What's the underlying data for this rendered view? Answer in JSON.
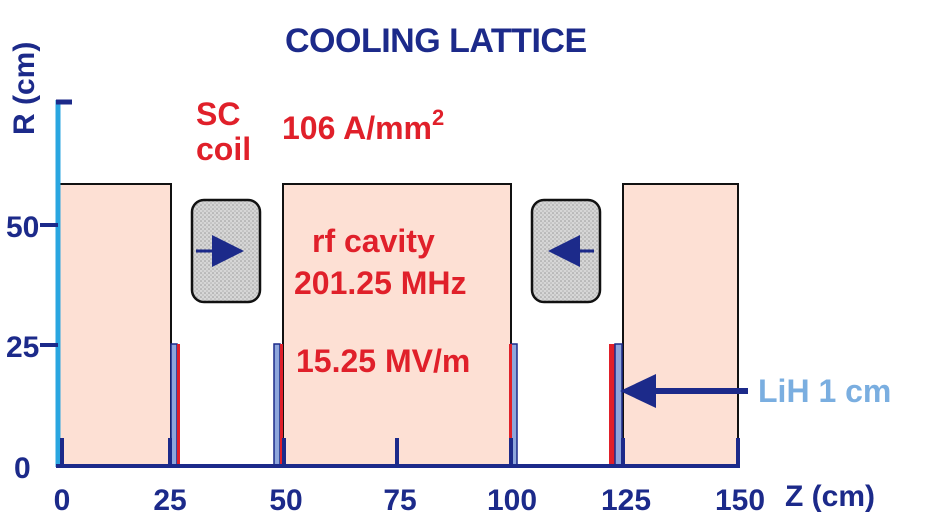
{
  "title": "COOLING LATTICE",
  "axes": {
    "y_label": "R (cm)",
    "x_label": "Z (cm)",
    "x_ticks": [
      "0",
      "25",
      "50",
      "75",
      "100",
      "125",
      "150"
    ],
    "y_ticks": [
      "0",
      "25",
      "50"
    ]
  },
  "labels": {
    "coil_line1": "SC",
    "coil_line2": "coil",
    "current_density": "106 A/mm",
    "current_density_sup": "2",
    "rf_line1": "rf cavity",
    "rf_line2": "201.25 MHz",
    "gradient": "15.25 MV/m",
    "absorber": "LiH 1 cm"
  },
  "colors": {
    "cavity_fill": "#fde0d4",
    "coil_fill": "#cfcfcf",
    "window_red": "#e0202a",
    "lih_blue": "#8ea6dc",
    "axis_blue": "#1c2a8a",
    "r_axis_cyan": "#2aa6e0"
  }
}
